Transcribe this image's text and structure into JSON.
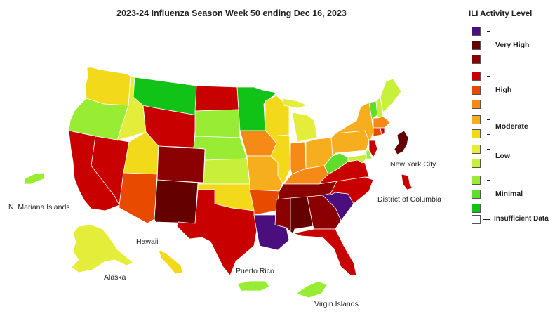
{
  "title": "2023-24 Influenza Season Week 50 ending Dec 16, 2023",
  "colors": {
    "level13": "#4b0f7d",
    "level12": "#650000",
    "level11": "#8b0000",
    "level10": "#c90000",
    "level9": "#e84a00",
    "level8": "#f58a16",
    "level7": "#f6ae1e",
    "level6": "#f2d91a",
    "level5": "#e4ee3a",
    "level4": "#c8f03a",
    "level3": "#98ec33",
    "level2": "#5fdd2a",
    "level1": "#12c317",
    "insufficient": "#ffffff"
  },
  "legend": {
    "title": "ILI Activity Level",
    "very_high": "Very High",
    "high": "High",
    "moderate": "Moderate",
    "low": "Low",
    "minimal": "Minimal",
    "insufficient": "Insufficient Data"
  },
  "labels": {
    "n_mariana": "N. Mariana Islands",
    "hawaii": "Hawaii",
    "alaska": "Alaska",
    "puerto_rico": "Puerto Rico",
    "virgin_islands": "Virgin Islands",
    "nyc": "New York City",
    "dc": "District of Columbia"
  },
  "states": {
    "WA": 6,
    "OR": 3,
    "CA": 10,
    "NV": 10,
    "ID": 5,
    "MT": 1,
    "WY": 10,
    "UT": 6,
    "AZ": 9,
    "CO": 11,
    "NM": 12,
    "ND": 10,
    "SD": 3,
    "NE": 3,
    "KS": 4,
    "OK": 6,
    "TX": 10,
    "MN": 1,
    "IA": 8,
    "MO": 7,
    "AR": 9,
    "LA": 13,
    "WI": 6,
    "IL": 6,
    "MI": 5,
    "IN": 8,
    "OH": 7,
    "KY": 8,
    "TN": 11,
    "MS": 11,
    "AL": 12,
    "GA": 11,
    "FL": 10,
    "SC": 13,
    "NC": 10,
    "VA": 10,
    "WV": 2,
    "PA": 7,
    "NY": 7,
    "VT": 2,
    "NH": 4,
    "ME": 4,
    "MA": 8,
    "CT": 9,
    "RI": 10,
    "NJ": 10,
    "DE": 3,
    "MD": 4,
    "AK": 5,
    "HI": 6,
    "PR": 3,
    "VI": 3,
    "MP": 3,
    "NYC": 12,
    "DC": 10
  }
}
